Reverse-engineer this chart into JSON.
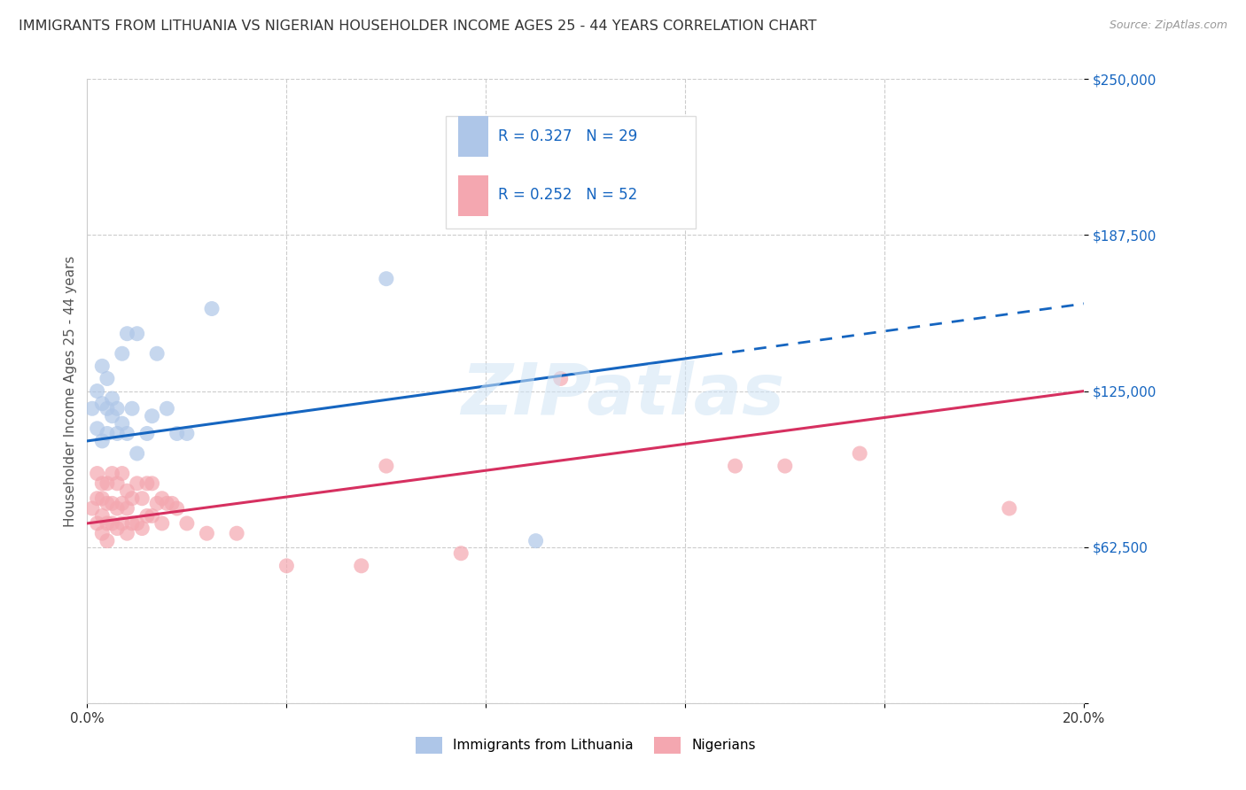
{
  "title": "IMMIGRANTS FROM LITHUANIA VS NIGERIAN HOUSEHOLDER INCOME AGES 25 - 44 YEARS CORRELATION CHART",
  "source": "Source: ZipAtlas.com",
  "ylabel": "Householder Income Ages 25 - 44 years",
  "xlim": [
    0.0,
    0.2
  ],
  "ylim": [
    0,
    250000
  ],
  "yticks": [
    0,
    62500,
    125000,
    187500,
    250000
  ],
  "ytick_labels": [
    "",
    "$62,500",
    "$125,000",
    "$187,500",
    "$250,000"
  ],
  "xticks": [
    0.0,
    0.04,
    0.08,
    0.12,
    0.16,
    0.2
  ],
  "xtick_labels": [
    "0.0%",
    "",
    "",
    "",
    "",
    "20.0%"
  ],
  "legend_label1": "Immigrants from Lithuania",
  "legend_label2": "Nigerians",
  "blue_color": "#aec6e8",
  "pink_color": "#f4a7b0",
  "line_blue": "#1565c0",
  "line_pink": "#d63060",
  "blue_line_solid_end": 0.125,
  "blue_line_x0": 0.0,
  "blue_line_y0": 105000,
  "blue_line_x1": 0.2,
  "blue_line_y1": 160000,
  "pink_line_x0": 0.0,
  "pink_line_y0": 72000,
  "pink_line_x1": 0.2,
  "pink_line_y1": 125000,
  "blue_scatter_x": [
    0.001,
    0.002,
    0.002,
    0.003,
    0.003,
    0.003,
    0.004,
    0.004,
    0.004,
    0.005,
    0.005,
    0.006,
    0.006,
    0.007,
    0.007,
    0.008,
    0.008,
    0.009,
    0.01,
    0.01,
    0.012,
    0.013,
    0.014,
    0.016,
    0.018,
    0.02,
    0.025,
    0.06,
    0.09
  ],
  "blue_scatter_y": [
    118000,
    110000,
    125000,
    135000,
    120000,
    105000,
    130000,
    118000,
    108000,
    115000,
    122000,
    108000,
    118000,
    140000,
    112000,
    148000,
    108000,
    118000,
    148000,
    100000,
    108000,
    115000,
    140000,
    118000,
    108000,
    108000,
    158000,
    170000,
    65000
  ],
  "pink_scatter_x": [
    0.001,
    0.002,
    0.002,
    0.002,
    0.003,
    0.003,
    0.003,
    0.003,
    0.004,
    0.004,
    0.004,
    0.004,
    0.005,
    0.005,
    0.005,
    0.006,
    0.006,
    0.006,
    0.007,
    0.007,
    0.007,
    0.008,
    0.008,
    0.008,
    0.009,
    0.009,
    0.01,
    0.01,
    0.011,
    0.011,
    0.012,
    0.012,
    0.013,
    0.013,
    0.014,
    0.015,
    0.015,
    0.016,
    0.017,
    0.018,
    0.02,
    0.024,
    0.03,
    0.04,
    0.055,
    0.06,
    0.075,
    0.095,
    0.13,
    0.14,
    0.155,
    0.185
  ],
  "pink_scatter_y": [
    78000,
    72000,
    82000,
    92000,
    68000,
    75000,
    82000,
    88000,
    65000,
    72000,
    80000,
    88000,
    72000,
    80000,
    92000,
    70000,
    78000,
    88000,
    72000,
    80000,
    92000,
    68000,
    78000,
    85000,
    72000,
    82000,
    72000,
    88000,
    70000,
    82000,
    75000,
    88000,
    75000,
    88000,
    80000,
    72000,
    82000,
    80000,
    80000,
    78000,
    72000,
    68000,
    68000,
    55000,
    55000,
    95000,
    60000,
    130000,
    95000,
    95000,
    100000,
    78000
  ],
  "bg_color": "#ffffff",
  "grid_color": "#cccccc",
  "watermark": "ZIPatlas"
}
